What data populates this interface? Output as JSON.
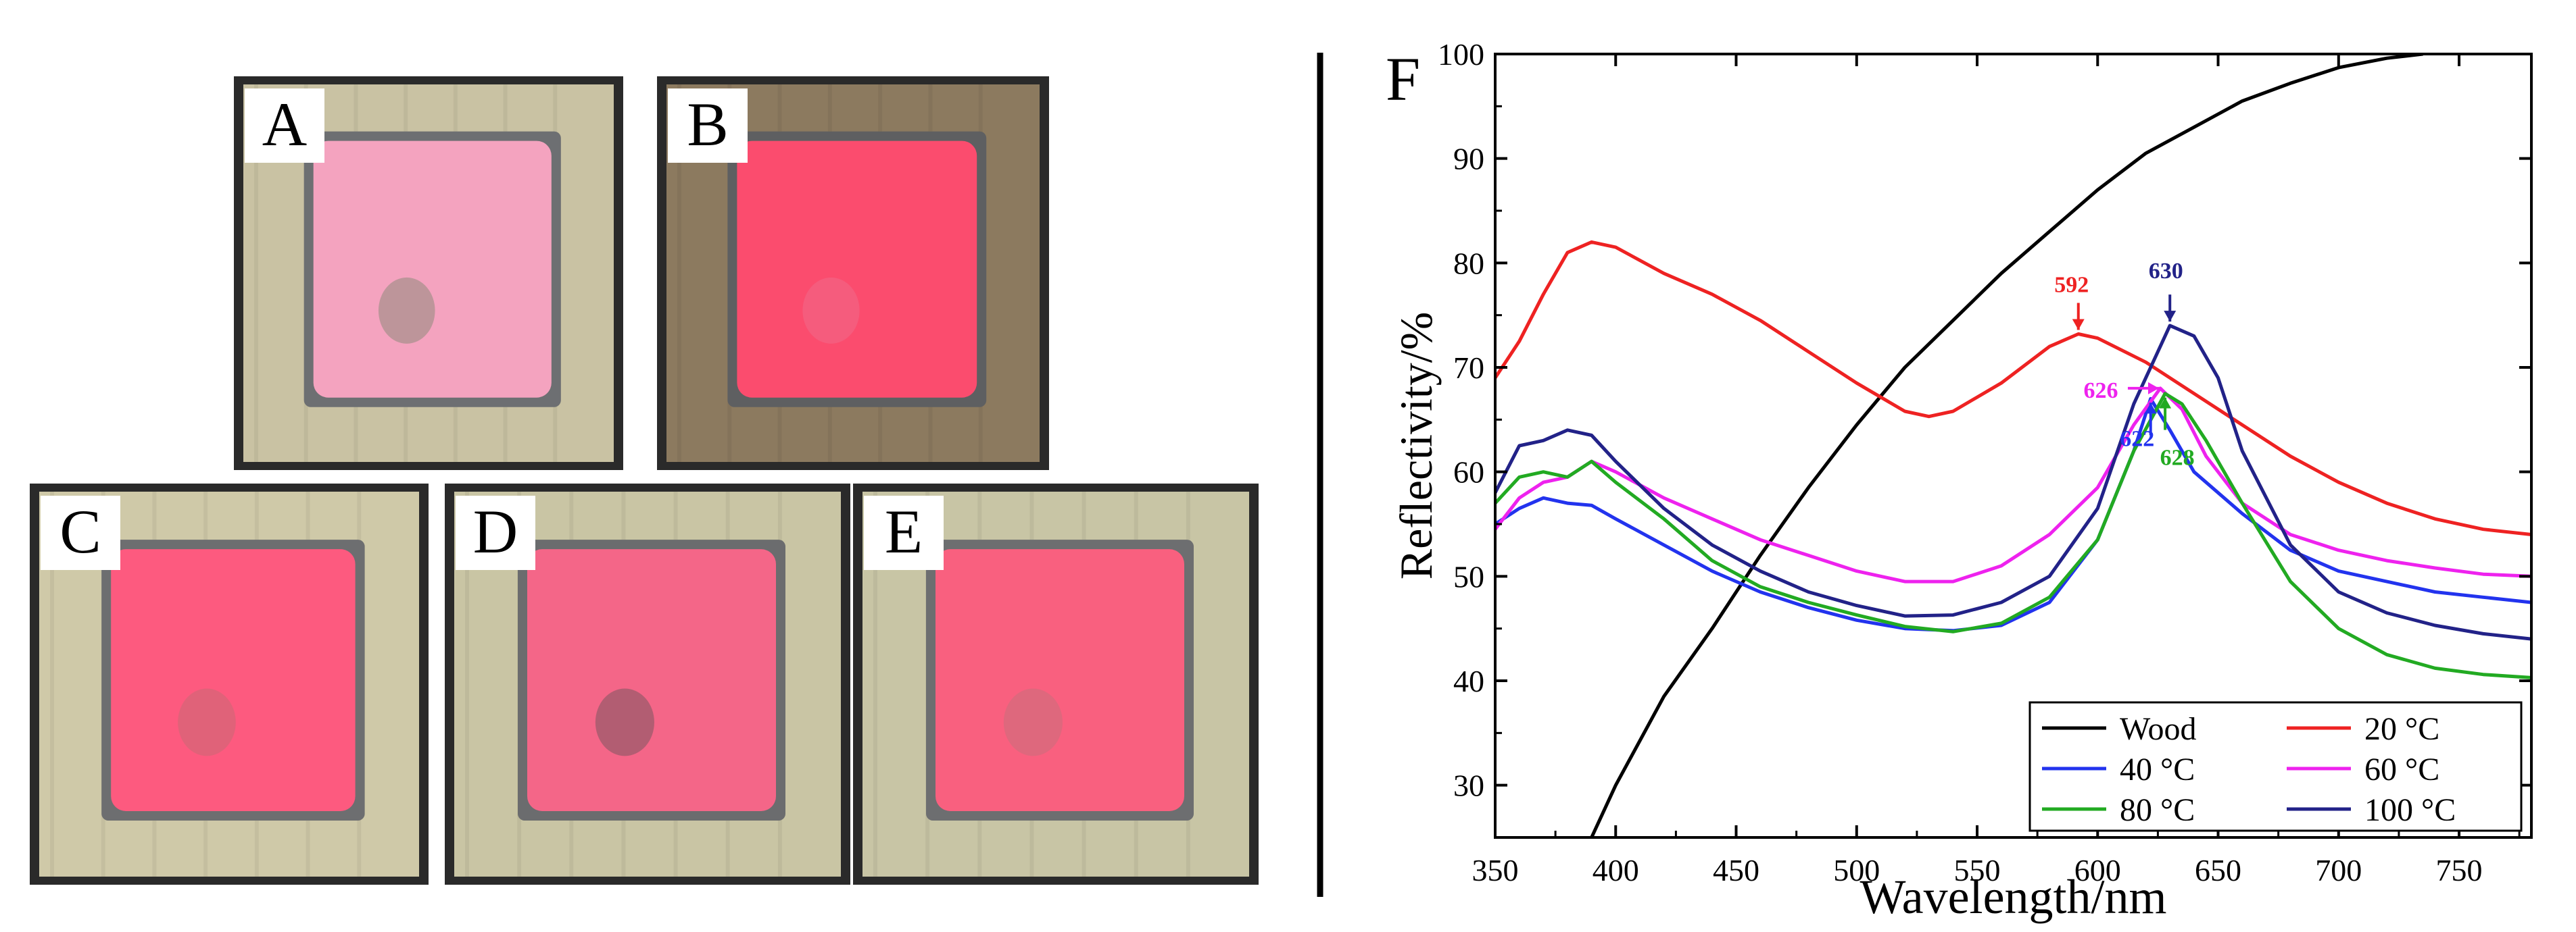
{
  "panels": [
    {
      "label": "A",
      "colors": {
        "wood": "#c9c2a3",
        "frame": "#6d6f72",
        "coating": "#f4a3bf",
        "stain": "#8f8a7c"
      }
    },
    {
      "label": "B",
      "colors": {
        "wood": "#8c7a5f",
        "frame": "#5e5f61",
        "coating": "#fb4c6e",
        "stain": "#f06a8a"
      }
    },
    {
      "label": "C",
      "colors": {
        "wood": "#cfc9a8",
        "frame": "#6d6e70",
        "coating": "#fd5a7f",
        "stain": "#c86a74"
      }
    },
    {
      "label": "D",
      "colors": {
        "wood": "#c9c5a4",
        "frame": "#6b6c6e",
        "coating": "#f46688",
        "stain": "#7c5560"
      }
    },
    {
      "label": "E",
      "colors": {
        "wood": "#c8c5a5",
        "frame": "#6d6e70",
        "coating": "#f9607f",
        "stain": "#c9707c"
      }
    }
  ],
  "chart_data": {
    "type": "line",
    "panel_label": "F",
    "xlabel": "Wavelength/nm",
    "ylabel": "Reflectivity/%",
    "xlim": [
      350,
      780
    ],
    "ylim": [
      25,
      100
    ],
    "xticks": [
      350,
      400,
      450,
      500,
      550,
      600,
      650,
      700,
      750
    ],
    "yticks": [
      30,
      40,
      50,
      60,
      70,
      80,
      90,
      100
    ],
    "legend_position": "bottom-right",
    "series": [
      {
        "name": "Wood",
        "color": "#000000",
        "x": [
          390,
          400,
          420,
          440,
          460,
          480,
          500,
          520,
          540,
          560,
          580,
          600,
          620,
          640,
          660,
          680,
          700,
          720,
          735
        ],
        "values": [
          25,
          30,
          38.5,
          45,
          52,
          58.5,
          64.5,
          70,
          74.5,
          79,
          83,
          87,
          90.5,
          93,
          95.5,
          97.2,
          98.7,
          99.6,
          100
        ]
      },
      {
        "name": "20 °C",
        "color": "#ee2222",
        "x": [
          350,
          360,
          370,
          380,
          390,
          400,
          420,
          440,
          460,
          480,
          500,
          520,
          530,
          540,
          560,
          580,
          592,
          600,
          620,
          640,
          660,
          680,
          700,
          720,
          740,
          760,
          780
        ],
        "values": [
          69,
          72.5,
          77,
          81,
          82,
          81.5,
          79,
          77,
          74.5,
          71.5,
          68.5,
          65.8,
          65.3,
          65.8,
          68.5,
          72,
          73.2,
          72.8,
          70.5,
          67.5,
          64.5,
          61.5,
          59,
          57,
          55.5,
          54.5,
          54
        ]
      },
      {
        "name": "40 °C",
        "color": "#2233ee",
        "x": [
          350,
          360,
          370,
          380,
          390,
          400,
          420,
          440,
          460,
          480,
          500,
          520,
          540,
          560,
          580,
          600,
          615,
          622,
          630,
          640,
          660,
          680,
          700,
          720,
          740,
          760,
          780
        ],
        "values": [
          55,
          56.5,
          57.5,
          57,
          56.8,
          55.5,
          53,
          50.5,
          48.5,
          47,
          45.8,
          45,
          44.8,
          45.3,
          47.5,
          53.5,
          62,
          67,
          64,
          60,
          56,
          52.5,
          50.5,
          49.5,
          48.5,
          48,
          47.5
        ]
      },
      {
        "name": "60 °C",
        "color": "#ee22ee",
        "x": [
          350,
          360,
          370,
          380,
          390,
          400,
          420,
          440,
          460,
          480,
          500,
          520,
          540,
          560,
          580,
          600,
          615,
          626,
          635,
          645,
          660,
          680,
          700,
          720,
          740,
          760,
          780
        ],
        "values": [
          54.5,
          57.5,
          59,
          59.5,
          61,
          60,
          57.5,
          55.5,
          53.5,
          52,
          50.5,
          49.5,
          49.5,
          51,
          54,
          58.5,
          64.5,
          68,
          66,
          61.5,
          57,
          54,
          52.5,
          51.5,
          50.8,
          50.2,
          50
        ]
      },
      {
        "name": "80 °C",
        "color": "#22aa22",
        "x": [
          350,
          360,
          370,
          380,
          390,
          400,
          420,
          440,
          460,
          480,
          500,
          520,
          540,
          560,
          580,
          600,
          615,
          628,
          635,
          645,
          660,
          680,
          700,
          720,
          740,
          760,
          780
        ],
        "values": [
          57,
          59.5,
          60,
          59.5,
          61,
          59,
          55.5,
          51.5,
          49,
          47.5,
          46.3,
          45.2,
          44.7,
          45.5,
          48,
          53.5,
          62,
          67.5,
          66.5,
          63,
          57,
          49.5,
          45,
          42.5,
          41.2,
          40.6,
          40.3
        ]
      },
      {
        "name": "100 °C",
        "color": "#222288",
        "x": [
          350,
          360,
          370,
          380,
          390,
          400,
          420,
          440,
          460,
          480,
          500,
          520,
          540,
          560,
          580,
          600,
          615,
          630,
          640,
          650,
          660,
          680,
          700,
          720,
          740,
          760,
          780
        ],
        "values": [
          58,
          62.5,
          63,
          64,
          63.5,
          61,
          56.5,
          53,
          50.5,
          48.5,
          47.2,
          46.2,
          46.3,
          47.5,
          50,
          56.5,
          66.5,
          74,
          73,
          69,
          62,
          53,
          48.5,
          46.5,
          45.3,
          44.5,
          44
        ]
      }
    ],
    "annotations": [
      {
        "text": "592",
        "color": "#ee2222",
        "x": 592,
        "y": 73.2
      },
      {
        "text": "630",
        "color": "#222288",
        "x": 630,
        "y": 74
      },
      {
        "text": "626",
        "color": "#ee22ee",
        "x": 626,
        "y": 68
      },
      {
        "text": "622",
        "color": "#2233ee",
        "x": 622,
        "y": 67
      },
      {
        "text": "628",
        "color": "#22aa22",
        "x": 628,
        "y": 67.5
      }
    ]
  }
}
